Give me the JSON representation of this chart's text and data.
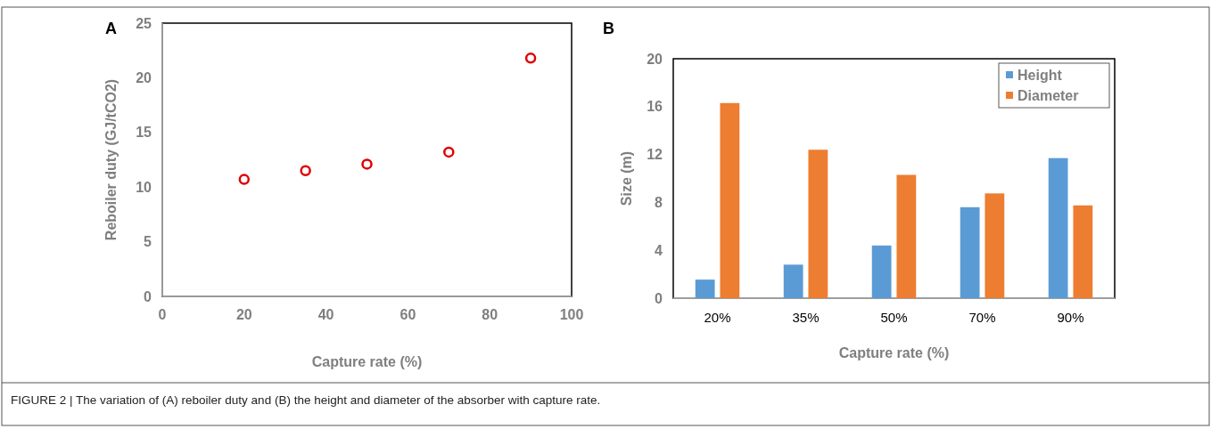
{
  "chart_data": [
    {
      "type": "scatter",
      "title": "A",
      "xlabel": "Capture rate (%)",
      "ylabel": "Reboiler duty (GJ/tCO2)",
      "x": [
        20,
        35,
        50,
        70,
        90
      ],
      "values": [
        10.7,
        11.5,
        12.1,
        13.2,
        21.8
      ],
      "color": "#e00000",
      "marker": "circle",
      "xlim": [
        0,
        100
      ],
      "xticks": [
        0,
        20,
        40,
        60,
        80,
        100
      ],
      "ylim": [
        0,
        25
      ],
      "yticks": [
        0,
        5,
        10,
        15,
        20,
        25
      ],
      "grid": false,
      "annotations": [
        "FIGURE 2 | The variation of (A) reboiler duty and (B) the height and diameter of the absorber with capture rate."
      ]
    },
    {
      "type": "bar",
      "title": "B",
      "xlabel": "Capture rate (%)",
      "ylabel": "Size (m)",
      "categories": [
        "20%",
        "35%",
        "50%",
        "70%",
        "90%"
      ],
      "series": [
        {
          "name": "Height",
          "color": "#5b9bd5",
          "values": [
            1.55,
            2.8,
            4.4,
            7.6,
            11.7
          ]
        },
        {
          "name": "Diameter",
          "color": "#ed7d31",
          "values": [
            16.3,
            12.4,
            10.3,
            8.75,
            7.75
          ]
        }
      ],
      "ylim": [
        0,
        20
      ],
      "yticks": [
        0,
        4,
        8,
        12,
        16,
        20
      ],
      "grid": false,
      "legend": "top right"
    }
  ]
}
